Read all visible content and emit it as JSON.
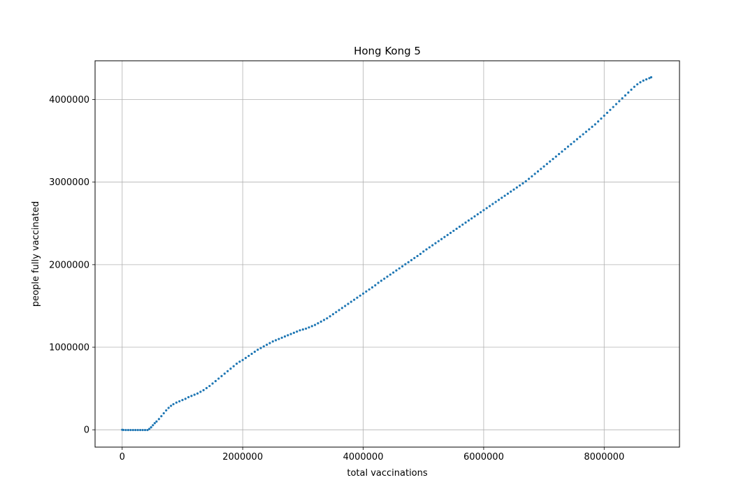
{
  "chart_data": {
    "type": "scatter",
    "title": "Hong Kong 5",
    "xlabel": "total vaccinations",
    "ylabel": "people fully vaccinated",
    "xlim": [
      -450000,
      9250000
    ],
    "ylim": [
      -210000,
      4470000
    ],
    "xticks": [
      0,
      2000000,
      4000000,
      6000000,
      8000000
    ],
    "xtick_labels": [
      "0",
      "2000000",
      "4000000",
      "6000000",
      "8000000"
    ],
    "yticks": [
      0,
      1000000,
      2000000,
      3000000,
      4000000
    ],
    "ytick_labels": [
      "0",
      "1000000",
      "2000000",
      "3000000",
      "4000000"
    ],
    "grid": true,
    "marker_color": "#1f77b4",
    "series": [
      {
        "values_note": "",
        "points": [
          [
            0,
            0
          ],
          [
            20000,
            -2000
          ],
          [
            60000,
            -3000
          ],
          [
            100000,
            -3000
          ],
          [
            140000,
            -3000
          ],
          [
            180000,
            -3000
          ],
          [
            220000,
            -3000
          ],
          [
            260000,
            -3000
          ],
          [
            300000,
            -3000
          ],
          [
            340000,
            -3000
          ],
          [
            380000,
            -3000
          ],
          [
            420000,
            -3000
          ],
          [
            450000,
            10000
          ],
          [
            480000,
            30000
          ],
          [
            510000,
            55000
          ],
          [
            540000,
            80000
          ],
          [
            570000,
            100000
          ],
          [
            610000,
            130000
          ],
          [
            650000,
            165000
          ],
          [
            690000,
            200000
          ],
          [
            730000,
            235000
          ],
          [
            770000,
            265000
          ],
          [
            810000,
            290000
          ],
          [
            850000,
            310000
          ],
          [
            900000,
            330000
          ],
          [
            950000,
            345000
          ],
          [
            1000000,
            360000
          ],
          [
            1050000,
            375000
          ],
          [
            1100000,
            395000
          ],
          [
            1150000,
            410000
          ],
          [
            1200000,
            425000
          ],
          [
            1250000,
            440000
          ],
          [
            1300000,
            460000
          ],
          [
            1350000,
            480000
          ],
          [
            1400000,
            505000
          ],
          [
            1450000,
            530000
          ],
          [
            1500000,
            560000
          ],
          [
            1550000,
            590000
          ],
          [
            1600000,
            620000
          ],
          [
            1650000,
            650000
          ],
          [
            1700000,
            680000
          ],
          [
            1750000,
            710000
          ],
          [
            1800000,
            740000
          ],
          [
            1850000,
            770000
          ],
          [
            1900000,
            800000
          ],
          [
            1950000,
            825000
          ],
          [
            2000000,
            845000
          ],
          [
            2050000,
            870000
          ],
          [
            2100000,
            895000
          ],
          [
            2150000,
            920000
          ],
          [
            2200000,
            945000
          ],
          [
            2250000,
            970000
          ],
          [
            2300000,
            990000
          ],
          [
            2350000,
            1010000
          ],
          [
            2400000,
            1030000
          ],
          [
            2450000,
            1050000
          ],
          [
            2500000,
            1070000
          ],
          [
            2550000,
            1085000
          ],
          [
            2600000,
            1100000
          ],
          [
            2650000,
            1115000
          ],
          [
            2700000,
            1130000
          ],
          [
            2750000,
            1145000
          ],
          [
            2800000,
            1160000
          ],
          [
            2850000,
            1175000
          ],
          [
            2900000,
            1190000
          ],
          [
            2950000,
            1205000
          ],
          [
            3000000,
            1215000
          ],
          [
            3050000,
            1225000
          ],
          [
            3100000,
            1240000
          ],
          [
            3150000,
            1255000
          ],
          [
            3200000,
            1270000
          ],
          [
            3250000,
            1290000
          ],
          [
            3300000,
            1310000
          ],
          [
            3350000,
            1330000
          ],
          [
            3400000,
            1350000
          ],
          [
            3450000,
            1375000
          ],
          [
            3500000,
            1400000
          ],
          [
            3550000,
            1425000
          ],
          [
            3600000,
            1450000
          ],
          [
            3650000,
            1475000
          ],
          [
            3700000,
            1500000
          ],
          [
            3750000,
            1525000
          ],
          [
            3800000,
            1550000
          ],
          [
            3850000,
            1575000
          ],
          [
            3900000,
            1600000
          ],
          [
            3950000,
            1625000
          ],
          [
            4000000,
            1650000
          ],
          [
            4050000,
            1675000
          ],
          [
            4100000,
            1700000
          ],
          [
            4150000,
            1725000
          ],
          [
            4200000,
            1750000
          ],
          [
            4250000,
            1780000
          ],
          [
            4300000,
            1805000
          ],
          [
            4350000,
            1830000
          ],
          [
            4400000,
            1855000
          ],
          [
            4450000,
            1880000
          ],
          [
            4500000,
            1905000
          ],
          [
            4550000,
            1930000
          ],
          [
            4600000,
            1955000
          ],
          [
            4650000,
            1980000
          ],
          [
            4700000,
            2005000
          ],
          [
            4750000,
            2030000
          ],
          [
            4800000,
            2055000
          ],
          [
            4850000,
            2080000
          ],
          [
            4900000,
            2105000
          ],
          [
            4950000,
            2130000
          ],
          [
            5000000,
            2160000
          ],
          [
            5050000,
            2185000
          ],
          [
            5100000,
            2210000
          ],
          [
            5150000,
            2235000
          ],
          [
            5200000,
            2260000
          ],
          [
            5250000,
            2285000
          ],
          [
            5300000,
            2310000
          ],
          [
            5350000,
            2335000
          ],
          [
            5400000,
            2360000
          ],
          [
            5450000,
            2385000
          ],
          [
            5500000,
            2410000
          ],
          [
            5550000,
            2435000
          ],
          [
            5600000,
            2460000
          ],
          [
            5650000,
            2485000
          ],
          [
            5700000,
            2510000
          ],
          [
            5750000,
            2535000
          ],
          [
            5800000,
            2560000
          ],
          [
            5850000,
            2585000
          ],
          [
            5900000,
            2610000
          ],
          [
            5950000,
            2635000
          ],
          [
            6000000,
            2660000
          ],
          [
            6050000,
            2685000
          ],
          [
            6100000,
            2710000
          ],
          [
            6150000,
            2735000
          ],
          [
            6200000,
            2760000
          ],
          [
            6250000,
            2785000
          ],
          [
            6300000,
            2810000
          ],
          [
            6350000,
            2835000
          ],
          [
            6400000,
            2860000
          ],
          [
            6450000,
            2885000
          ],
          [
            6500000,
            2910000
          ],
          [
            6550000,
            2935000
          ],
          [
            6600000,
            2960000
          ],
          [
            6650000,
            2985000
          ],
          [
            6700000,
            3010000
          ],
          [
            6750000,
            3040000
          ],
          [
            6800000,
            3070000
          ],
          [
            6850000,
            3100000
          ],
          [
            6900000,
            3130000
          ],
          [
            6950000,
            3160000
          ],
          [
            7000000,
            3190000
          ],
          [
            7050000,
            3220000
          ],
          [
            7100000,
            3250000
          ],
          [
            7150000,
            3280000
          ],
          [
            7200000,
            3310000
          ],
          [
            7250000,
            3340000
          ],
          [
            7300000,
            3370000
          ],
          [
            7350000,
            3400000
          ],
          [
            7400000,
            3430000
          ],
          [
            7450000,
            3460000
          ],
          [
            7500000,
            3490000
          ],
          [
            7550000,
            3520000
          ],
          [
            7600000,
            3550000
          ],
          [
            7650000,
            3580000
          ],
          [
            7700000,
            3610000
          ],
          [
            7750000,
            3640000
          ],
          [
            7800000,
            3670000
          ],
          [
            7850000,
            3700000
          ],
          [
            7900000,
            3735000
          ],
          [
            7950000,
            3770000
          ],
          [
            8000000,
            3805000
          ],
          [
            8050000,
            3840000
          ],
          [
            8100000,
            3875000
          ],
          [
            8150000,
            3910000
          ],
          [
            8200000,
            3945000
          ],
          [
            8250000,
            3980000
          ],
          [
            8300000,
            4015000
          ],
          [
            8350000,
            4050000
          ],
          [
            8400000,
            4085000
          ],
          [
            8450000,
            4120000
          ],
          [
            8500000,
            4155000
          ],
          [
            8550000,
            4185000
          ],
          [
            8600000,
            4210000
          ],
          [
            8650000,
            4230000
          ],
          [
            8700000,
            4245000
          ],
          [
            8750000,
            4260000
          ],
          [
            8780000,
            4270000
          ]
        ]
      }
    ]
  }
}
